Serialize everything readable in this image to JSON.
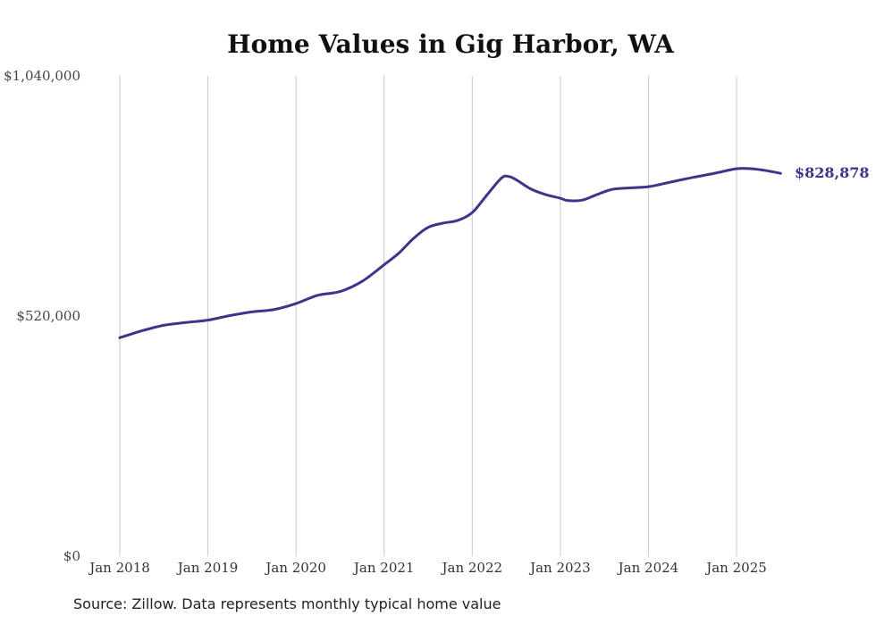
{
  "chart_data": {
    "type": "line",
    "title": "Home Values in Gig Harbor, WA",
    "xlabel": "",
    "ylabel": "",
    "ylim": [
      0,
      1040000
    ],
    "y_ticks": [
      {
        "value": 0,
        "label": "$0"
      },
      {
        "value": 520000,
        "label": "$520,000"
      },
      {
        "value": 1040000,
        "label": "$1,040,000"
      }
    ],
    "x_ticks": [
      {
        "value": "2018-01",
        "label": "Jan 2018"
      },
      {
        "value": "2019-01",
        "label": "Jan 2019"
      },
      {
        "value": "2020-01",
        "label": "Jan 2020"
      },
      {
        "value": "2021-01",
        "label": "Jan 2021"
      },
      {
        "value": "2022-01",
        "label": "Jan 2022"
      },
      {
        "value": "2023-01",
        "label": "Jan 2023"
      },
      {
        "value": "2024-01",
        "label": "Jan 2024"
      },
      {
        "value": "2025-01",
        "label": "Jan 2025"
      }
    ],
    "xlim": [
      "2018-01",
      "2025-07"
    ],
    "grid": {
      "vertical": true,
      "horizontal": false
    },
    "legend": "none",
    "end_label": "$828,878",
    "color": "#3d3589",
    "series": [
      {
        "x": [
          "2018-01",
          "2018-04",
          "2018-07",
          "2018-10",
          "2019-01",
          "2019-04",
          "2019-07",
          "2019-10",
          "2020-01",
          "2020-04",
          "2020-07",
          "2020-10",
          "2021-01",
          "2021-03",
          "2021-05",
          "2021-07",
          "2021-09",
          "2021-11",
          "2022-01",
          "2022-03",
          "2022-05",
          "2022-06",
          "2022-07",
          "2022-09",
          "2022-11",
          "2023-01",
          "2023-02",
          "2023-04",
          "2023-06",
          "2023-08",
          "2023-10",
          "2024-01",
          "2024-04",
          "2024-07",
          "2024-10",
          "2025-01",
          "2025-03",
          "2025-05",
          "2025-07"
        ],
        "y": [
          473000,
          488000,
          500000,
          506000,
          511000,
          521000,
          529000,
          534000,
          547000,
          565000,
          573000,
          595000,
          631000,
          656000,
          688000,
          712000,
          721000,
          727000,
          744000,
          782000,
          819000,
          822000,
          815000,
          795000,
          783000,
          775000,
          770000,
          771000,
          783000,
          794000,
          797000,
          800000,
          810000,
          820000,
          829000,
          839000,
          839000,
          835000,
          828878
        ]
      }
    ]
  },
  "source": "Source: Zillow. Data represents monthly typical home value"
}
